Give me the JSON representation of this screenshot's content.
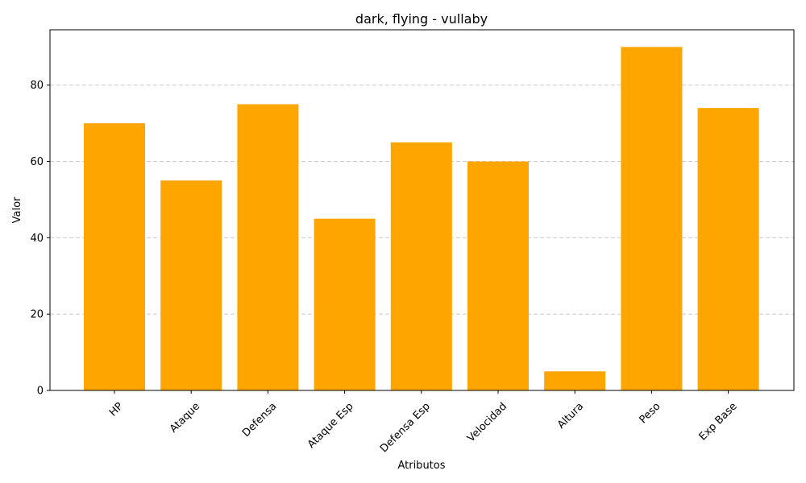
{
  "chart_data": {
    "type": "bar",
    "title": "dark, flying - vullaby",
    "xlabel": "Atributos",
    "ylabel": "Valor",
    "categories": [
      "HP",
      "Ataque",
      "Defensa",
      "Ataque Esp",
      "Defensa Esp",
      "Velocidad",
      "Altura",
      "Peso",
      "Exp Base"
    ],
    "values": [
      70,
      55,
      75,
      45,
      65,
      60,
      5,
      90,
      74
    ],
    "ylim": [
      0,
      94.5
    ],
    "yticks": [
      0,
      20,
      40,
      60,
      80
    ],
    "grid": "y-dashed",
    "bar_color": "#FFA500",
    "grid_color": "#cccccc"
  }
}
